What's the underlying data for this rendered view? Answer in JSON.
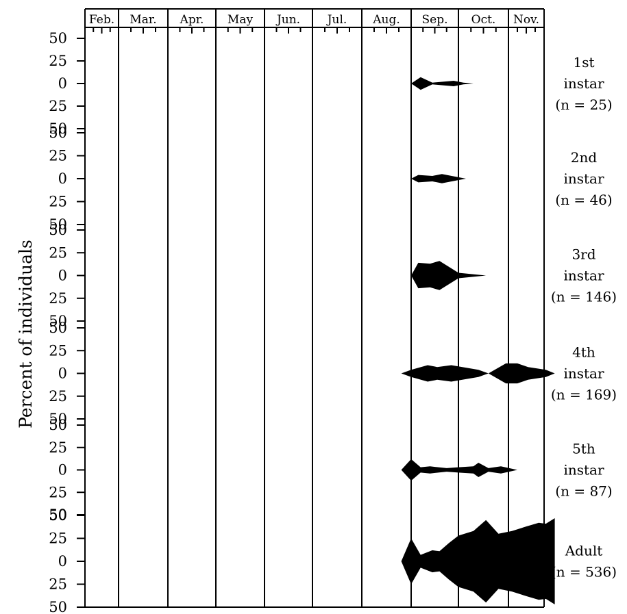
{
  "chart_data": {
    "type": "area",
    "ylabel": "Percent of individuals",
    "months": [
      "Feb.",
      "Mar.",
      "Apr.",
      "May",
      "Jun.",
      "Jul.",
      "Aug.",
      "Sep.",
      "Oct.",
      "Nov."
    ],
    "y_tick_labels": [
      "50",
      "25",
      "0",
      "25",
      "50"
    ],
    "y_range": [
      -50,
      50
    ],
    "grid": false,
    "panels": [
      {
        "stage": "1st",
        "stage2": "instar",
        "n_label": "(n = 25)",
        "points": [
          [
            7.0,
            0
          ],
          [
            7.2,
            7
          ],
          [
            7.45,
            1
          ],
          [
            7.9,
            3
          ],
          [
            8.1,
            1
          ],
          [
            8.3,
            0
          ]
        ]
      },
      {
        "stage": "2nd",
        "stage2": "instar",
        "n_label": "(n = 46)",
        "points": [
          [
            7.0,
            0
          ],
          [
            7.15,
            4
          ],
          [
            7.45,
            3
          ],
          [
            7.65,
            5
          ],
          [
            7.95,
            2
          ],
          [
            8.15,
            0
          ]
        ]
      },
      {
        "stage": "3rd",
        "stage2": "instar",
        "n_label": "(n = 146)",
        "points": [
          [
            7.0,
            0
          ],
          [
            7.15,
            14
          ],
          [
            7.4,
            13
          ],
          [
            7.6,
            16
          ],
          [
            8.0,
            3
          ],
          [
            8.55,
            0
          ]
        ]
      },
      {
        "stage": "4th",
        "stage2": "instar",
        "n_label": "(n = 169)",
        "points": [
          [
            6.8,
            0
          ],
          [
            7.0,
            4
          ],
          [
            7.35,
            9
          ],
          [
            7.55,
            7
          ],
          [
            7.85,
            9
          ],
          [
            8.4,
            4
          ],
          [
            8.6,
            0
          ],
          [
            8.95,
            11
          ],
          [
            9.25,
            11
          ],
          [
            9.55,
            7
          ],
          [
            10.05,
            4
          ],
          [
            10.3,
            0
          ]
        ]
      },
      {
        "stage": "5th",
        "stage2": "instar",
        "n_label": "(n = 87)",
        "points": [
          [
            6.8,
            0
          ],
          [
            7.0,
            12
          ],
          [
            7.2,
            3
          ],
          [
            7.4,
            4
          ],
          [
            7.75,
            2
          ],
          [
            8.0,
            3
          ],
          [
            8.3,
            4
          ],
          [
            8.4,
            8
          ],
          [
            8.6,
            2
          ],
          [
            8.85,
            4
          ],
          [
            9.25,
            0
          ]
        ]
      },
      {
        "stage": "Adult",
        "stage2": "",
        "n_label": "(n = 536)",
        "points": [
          [
            6.8,
            0
          ],
          [
            7.0,
            25
          ],
          [
            7.2,
            7
          ],
          [
            7.45,
            12
          ],
          [
            7.6,
            11
          ],
          [
            7.8,
            20
          ],
          [
            8.0,
            28
          ],
          [
            8.3,
            33
          ],
          [
            8.55,
            45
          ],
          [
            8.8,
            30
          ],
          [
            9.1,
            33
          ],
          [
            9.5,
            38
          ],
          [
            9.85,
            42
          ],
          [
            10.05,
            41
          ],
          [
            10.3,
            47
          ],
          [
            10.3,
            0
          ]
        ]
      }
    ]
  }
}
